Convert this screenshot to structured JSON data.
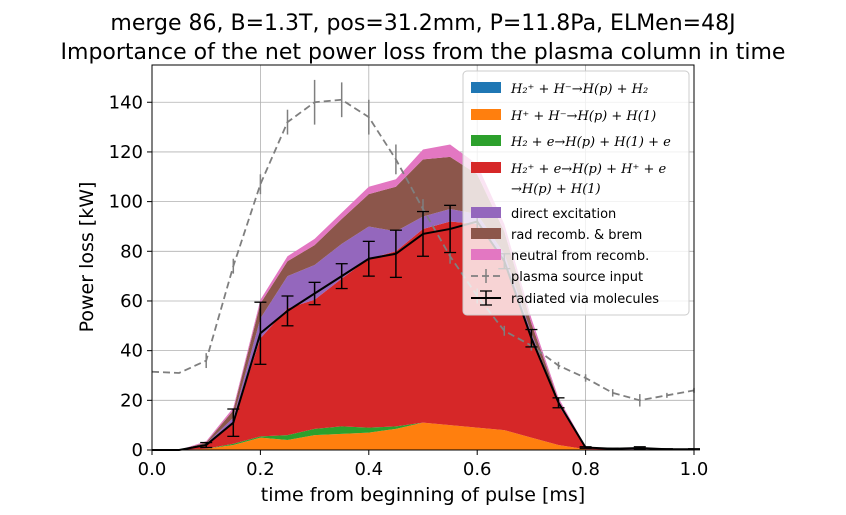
{
  "chart_data": {
    "type": "area",
    "title_line1": "merge 86, B=1.3T, pos=31.2mm, P=11.8Pa, ELMen=48J",
    "title_line2": "Importance of the net power loss from the plasma column in time",
    "xlabel": "time from beginning of pulse [ms]",
    "ylabel": "Power loss [kW]",
    "xlim": [
      0.0,
      1.0
    ],
    "ylim": [
      0,
      155
    ],
    "xticks": [
      "0.0",
      "0.2",
      "0.4",
      "0.6",
      "0.8",
      "1.0"
    ],
    "yticks": [
      "0",
      "20",
      "40",
      "60",
      "80",
      "100",
      "120",
      "140"
    ],
    "grid": true,
    "legend_position": "upper-right",
    "x": [
      0.0,
      0.05,
      0.1,
      0.15,
      0.2,
      0.25,
      0.3,
      0.35,
      0.4,
      0.45,
      0.5,
      0.55,
      0.6,
      0.65,
      0.7,
      0.75,
      0.8,
      0.85,
      0.9,
      0.95,
      1.0
    ],
    "stacked_series": [
      {
        "name": "H_2^+ + H^- → H(p) + H_2",
        "legend_label": "H₂⁺ + H⁻→H(p) + H₂",
        "color": "#1f77b4",
        "values": [
          0,
          0,
          0,
          0,
          0,
          0,
          0,
          0,
          0,
          0,
          0,
          0,
          0,
          0,
          0,
          0,
          0,
          0,
          0,
          0,
          0
        ]
      },
      {
        "name": "H^+ + H^- → H(p) + H(1)",
        "legend_label": "H⁺ + H⁻→H(p) + H(1)",
        "color": "#ff7f0e",
        "values": [
          0,
          0,
          0.5,
          2,
          5,
          4,
          6,
          6.5,
          7,
          8.5,
          11,
          10,
          9,
          8,
          5,
          2,
          0.3,
          0.1,
          0.1,
          0,
          0
        ]
      },
      {
        "name": "H_2 + e → H(p) + H(1) + e",
        "legend_label": "H₂ + e→H(p) + H(1) + e",
        "color": "#2ca02c",
        "values": [
          0,
          0,
          0,
          0.5,
          0.5,
          2,
          2.5,
          3,
          2,
          1,
          0,
          0,
          0,
          0,
          0,
          0,
          0,
          0,
          0,
          0,
          0
        ]
      },
      {
        "name": "H_2^+ + e → H(p) + H^+ + e → H(p) + H(1)",
        "legend_label_line1": "H₂⁺ + e→H(p) + H⁺ + e",
        "legend_label_line2": "→H(p) + H(1)",
        "color": "#d62728",
        "values": [
          0,
          0,
          1.5,
          8.5,
          39.5,
          51,
          52,
          59.5,
          68,
          70.5,
          78,
          82,
          82,
          68,
          40,
          16,
          0.7,
          0.1,
          0.2,
          0,
          0
        ]
      },
      {
        "name": "direct excitation",
        "legend_label": "direct excitation",
        "color": "#9467bd",
        "values": [
          0,
          0,
          0.5,
          2,
          8,
          13,
          14,
          14,
          13,
          8,
          5,
          5,
          4,
          3,
          2,
          1,
          0.2,
          0.1,
          0.1,
          0,
          0
        ]
      },
      {
        "name": "rad recomb. & brem",
        "legend_label": "rad recomb. & brem",
        "color": "#8c564b",
        "values": [
          0,
          0,
          0.5,
          3,
          6,
          6,
          8,
          10,
          13,
          18,
          23,
          21,
          16,
          9,
          4,
          1,
          0.2,
          0.1,
          0.1,
          0,
          0
        ]
      },
      {
        "name": "neutral from recomb.",
        "legend_label": "neutral from recomb.",
        "color": "#e377c2",
        "values": [
          0,
          0,
          0.5,
          1,
          1.5,
          2,
          2.5,
          2.5,
          3,
          3,
          4,
          5,
          4,
          3,
          2,
          1,
          0.1,
          0,
          0,
          0,
          0
        ]
      }
    ],
    "line_series": [
      {
        "name": "plasma source input",
        "legend_label": "plasma source input",
        "color": "#7f7f7f",
        "style": "dashed",
        "x": [
          0.0,
          0.05,
          0.1,
          0.15,
          0.2,
          0.25,
          0.3,
          0.35,
          0.4,
          0.45,
          0.5,
          0.55,
          0.6,
          0.65,
          0.7,
          0.75,
          0.8,
          0.85,
          0.9,
          0.95,
          1.0
        ],
        "values": [
          31.5,
          31,
          36,
          74,
          107,
          132,
          140,
          141,
          134,
          117,
          97,
          78,
          62,
          48,
          42,
          34,
          29,
          23,
          20,
          22,
          24
        ],
        "error": [
          0,
          0,
          3,
          3,
          4,
          5,
          9,
          7,
          7,
          6,
          4,
          3,
          3,
          2,
          2,
          1.5,
          1.5,
          1.5,
          2.5,
          1,
          1
        ]
      },
      {
        "name": "radiated via molecules",
        "legend_label": "radiated via molecules",
        "color": "#000000",
        "style": "solid",
        "x": [
          0.0,
          0.05,
          0.1,
          0.15,
          0.2,
          0.25,
          0.3,
          0.35,
          0.4,
          0.45,
          0.5,
          0.55,
          0.6,
          0.65,
          0.7,
          0.75,
          0.8,
          0.85,
          0.9,
          0.95,
          1.0
        ],
        "values": [
          0,
          0,
          2,
          11,
          47,
          56,
          63,
          70,
          77,
          79,
          87,
          89,
          92,
          76,
          45,
          19,
          1,
          0.5,
          0.8,
          0.3,
          0.3
        ],
        "error": [
          0,
          0,
          1,
          5.5,
          12.5,
          6,
          4.5,
          5,
          7,
          9.5,
          9,
          9.5,
          4,
          3,
          3.5,
          2,
          0.3,
          0.2,
          0.5,
          0.2,
          0.2
        ]
      }
    ]
  }
}
